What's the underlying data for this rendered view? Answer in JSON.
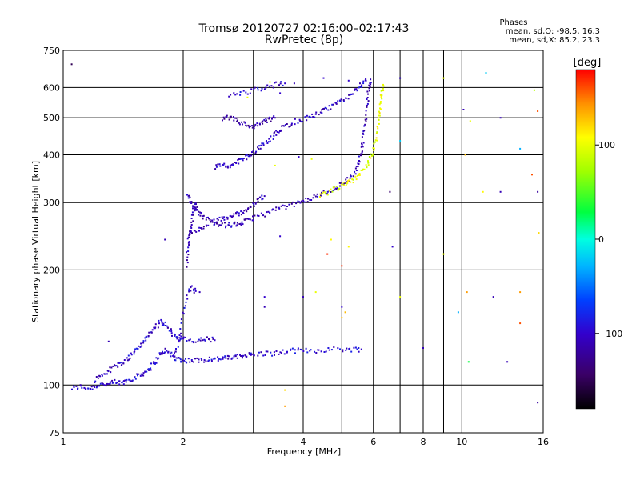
{
  "chart_data": {
    "type": "scatter",
    "title": "Tromsø 20120727 02:16:00–02:17:43",
    "subtitle": "RwPretec (8p)",
    "xlabel": "Frequency [MHz]",
    "ylabel": "Stationary phase Virtual Height [km]",
    "x_scale": "log",
    "y_scale": "log",
    "xlim": [
      1,
      16
    ],
    "ylim": [
      75,
      750
    ],
    "x_ticks": [
      1,
      2,
      4,
      6,
      8,
      10,
      16
    ],
    "y_ticks": [
      75,
      100,
      200,
      300,
      400,
      500,
      600,
      750
    ],
    "x_minor_gridlines": [
      3,
      5,
      7,
      9
    ],
    "grid": true,
    "phases_box": {
      "title": "Phases",
      "line_o": "mean, sd,O: -98.5, 16.3",
      "line_x": "mean, sd,X:  85.2, 23.3"
    },
    "colorbar": {
      "label": "[deg]",
      "range": [
        -180,
        180
      ],
      "ticks": [
        100,
        0,
        -100
      ],
      "tick_labels": [
        "100",
        "0",
        "−100"
      ]
    },
    "traces": [
      {
        "phase": -100,
        "points": [
          [
            1.05,
            98
          ],
          [
            1.1,
            99
          ],
          [
            1.15,
            98
          ],
          [
            1.2,
            99
          ],
          [
            1.25,
            101
          ],
          [
            1.3,
            100
          ],
          [
            1.35,
            102
          ],
          [
            1.4,
            101
          ],
          [
            1.45,
            103
          ],
          [
            1.5,
            104
          ],
          [
            1.55,
            106
          ],
          [
            1.6,
            108
          ],
          [
            1.65,
            111
          ],
          [
            1.7,
            115
          ],
          [
            1.75,
            120
          ],
          [
            1.8,
            123
          ],
          [
            1.85,
            121
          ],
          [
            1.9,
            118
          ],
          [
            1.95,
            117
          ],
          [
            2.0,
            116
          ],
          [
            2.1,
            116
          ],
          [
            2.2,
            116
          ],
          [
            2.3,
            117
          ],
          [
            2.4,
            117
          ],
          [
            2.5,
            117
          ],
          [
            2.6,
            118
          ],
          [
            2.7,
            118
          ],
          [
            2.8,
            119
          ],
          [
            2.9,
            120
          ],
          [
            3.0,
            120
          ],
          [
            3.2,
            121
          ],
          [
            3.4,
            121
          ],
          [
            3.6,
            122
          ],
          [
            3.8,
            123
          ],
          [
            4.0,
            123
          ],
          [
            4.3,
            123
          ],
          [
            4.6,
            124
          ],
          [
            5.0,
            124
          ],
          [
            5.3,
            124
          ],
          [
            5.6,
            124
          ]
        ]
      },
      {
        "phase": -100,
        "points": [
          [
            1.2,
            103
          ],
          [
            1.25,
            106
          ],
          [
            1.3,
            109
          ],
          [
            1.35,
            112
          ],
          [
            1.4,
            114
          ],
          [
            1.45,
            117
          ],
          [
            1.5,
            121
          ],
          [
            1.55,
            126
          ],
          [
            1.6,
            131
          ],
          [
            1.65,
            136
          ],
          [
            1.7,
            141
          ],
          [
            1.75,
            146
          ],
          [
            1.8,
            144
          ],
          [
            1.85,
            139
          ],
          [
            1.9,
            135
          ],
          [
            1.95,
            133
          ],
          [
            2.0,
            132
          ],
          [
            2.1,
            130
          ],
          [
            2.2,
            131
          ],
          [
            2.3,
            132
          ],
          [
            2.4,
            131
          ]
        ]
      },
      {
        "phase": -100,
        "points": [
          [
            1.9,
            120
          ],
          [
            1.95,
            130
          ],
          [
            2.0,
            152
          ],
          [
            2.05,
            172
          ],
          [
            2.1,
            180
          ],
          [
            2.15,
            176
          ]
        ]
      },
      {
        "phase": -110,
        "points": [
          [
            2.05,
            318
          ],
          [
            2.08,
            305
          ],
          [
            2.12,
            295
          ],
          [
            2.16,
            288
          ],
          [
            2.2,
            280
          ],
          [
            2.3,
            272
          ],
          [
            2.4,
            266
          ],
          [
            2.5,
            262
          ],
          [
            2.6,
            262
          ],
          [
            2.7,
            263
          ],
          [
            2.8,
            265
          ],
          [
            2.9,
            269
          ],
          [
            3.0,
            274
          ],
          [
            3.2,
            280
          ],
          [
            3.4,
            287
          ],
          [
            3.6,
            292
          ],
          [
            3.8,
            297
          ],
          [
            4.0,
            302
          ],
          [
            4.2,
            308
          ],
          [
            4.4,
            314
          ],
          [
            4.6,
            320
          ],
          [
            4.8,
            327
          ],
          [
            5.0,
            335
          ],
          [
            5.2,
            346
          ],
          [
            5.4,
            362
          ],
          [
            5.5,
            380
          ],
          [
            5.6,
            405
          ],
          [
            5.65,
            435
          ],
          [
            5.7,
            470
          ],
          [
            5.75,
            510
          ],
          [
            5.8,
            560
          ],
          [
            5.85,
            600
          ],
          [
            5.9,
            630
          ]
        ]
      },
      {
        "phase": -110,
        "points": [
          [
            2.05,
            245
          ],
          [
            2.1,
            250
          ],
          [
            2.2,
            256
          ],
          [
            2.3,
            262
          ],
          [
            2.4,
            268
          ],
          [
            2.5,
            272
          ],
          [
            2.6,
            275
          ],
          [
            2.7,
            279
          ],
          [
            2.8,
            283
          ],
          [
            2.9,
            289
          ],
          [
            3.0,
            296
          ],
          [
            3.1,
            305
          ],
          [
            3.2,
            312
          ]
        ]
      },
      {
        "phase": -110,
        "points": [
          [
            2.05,
            205
          ],
          [
            2.05,
            225
          ],
          [
            2.07,
            245
          ],
          [
            2.1,
            265
          ],
          [
            2.12,
            285
          ],
          [
            2.15,
            300
          ]
        ]
      },
      {
        "phase": -105,
        "points": [
          [
            2.4,
            372
          ],
          [
            2.5,
            373
          ],
          [
            2.6,
            375
          ],
          [
            2.7,
            380
          ],
          [
            2.8,
            388
          ],
          [
            2.9,
            395
          ],
          [
            3.0,
            405
          ],
          [
            3.1,
            416
          ],
          [
            3.2,
            428
          ],
          [
            3.3,
            440
          ],
          [
            3.4,
            452
          ],
          [
            3.5,
            465
          ],
          [
            3.6,
            475
          ],
          [
            3.8,
            488
          ],
          [
            4.0,
            495
          ],
          [
            4.2,
            505
          ],
          [
            4.4,
            515
          ],
          [
            4.6,
            525
          ],
          [
            4.8,
            540
          ],
          [
            5.0,
            555
          ],
          [
            5.2,
            570
          ],
          [
            5.4,
            590
          ],
          [
            5.6,
            610
          ],
          [
            5.75,
            625
          ]
        ]
      },
      {
        "phase": -115,
        "points": [
          [
            2.5,
            495
          ],
          [
            2.6,
            500
          ],
          [
            2.7,
            495
          ],
          [
            2.8,
            485
          ],
          [
            2.9,
            475
          ],
          [
            3.0,
            470
          ],
          [
            3.1,
            480
          ],
          [
            3.2,
            490
          ],
          [
            3.3,
            495
          ],
          [
            3.4,
            500
          ]
        ]
      },
      {
        "phase": -100,
        "points": [
          [
            2.6,
            570
          ],
          [
            2.8,
            580
          ],
          [
            3.0,
            590
          ],
          [
            3.2,
            600
          ],
          [
            3.4,
            610
          ],
          [
            3.6,
            615
          ]
        ]
      },
      {
        "phase": 100,
        "points": [
          [
            4.4,
            312
          ],
          [
            4.6,
            318
          ],
          [
            4.8,
            325
          ],
          [
            5.0,
            332
          ],
          [
            5.2,
            338
          ],
          [
            5.4,
            346
          ],
          [
            5.6,
            360
          ],
          [
            5.8,
            380
          ],
          [
            5.95,
            400
          ],
          [
            6.05,
            425
          ],
          [
            6.15,
            460
          ],
          [
            6.2,
            500
          ],
          [
            6.25,
            540
          ],
          [
            6.3,
            580
          ],
          [
            6.35,
            610
          ]
        ]
      }
    ],
    "scatter_points": [
      {
        "x": 1.05,
        "y": 690,
        "phase": -150
      },
      {
        "x": 3.3,
        "y": 620,
        "phase": 100
      },
      {
        "x": 3.8,
        "y": 615,
        "phase": -110
      },
      {
        "x": 4.5,
        "y": 635,
        "phase": -100
      },
      {
        "x": 5.2,
        "y": 625,
        "phase": -100
      },
      {
        "x": 7.0,
        "y": 635,
        "phase": -100
      },
      {
        "x": 9.0,
        "y": 635,
        "phase": 100
      },
      {
        "x": 11.5,
        "y": 655,
        "phase": -20
      },
      {
        "x": 15.2,
        "y": 590,
        "phase": 80
      },
      {
        "x": 15.5,
        "y": 520,
        "phase": 160
      },
      {
        "x": 10.1,
        "y": 525,
        "phase": -110
      },
      {
        "x": 10.5,
        "y": 490,
        "phase": 100
      },
      {
        "x": 10.2,
        "y": 400,
        "phase": 130
      },
      {
        "x": 12.5,
        "y": 500,
        "phase": -110
      },
      {
        "x": 14.0,
        "y": 415,
        "phase": -30
      },
      {
        "x": 7.0,
        "y": 435,
        "phase": -20
      },
      {
        "x": 15.0,
        "y": 355,
        "phase": 160
      },
      {
        "x": 11.3,
        "y": 320,
        "phase": 110
      },
      {
        "x": 12.5,
        "y": 320,
        "phase": -110
      },
      {
        "x": 15.5,
        "y": 320,
        "phase": -120
      },
      {
        "x": 15.6,
        "y": 250,
        "phase": 120
      },
      {
        "x": 9.0,
        "y": 220,
        "phase": 100
      },
      {
        "x": 6.7,
        "y": 230,
        "phase": -100
      },
      {
        "x": 5.2,
        "y": 230,
        "phase": 110
      },
      {
        "x": 4.7,
        "y": 240,
        "phase": 110
      },
      {
        "x": 4.6,
        "y": 220,
        "phase": 170
      },
      {
        "x": 5.0,
        "y": 205,
        "phase": 170
      },
      {
        "x": 6.6,
        "y": 320,
        "phase": -140
      },
      {
        "x": 10.3,
        "y": 175,
        "phase": 140
      },
      {
        "x": 12.0,
        "y": 170,
        "phase": -110
      },
      {
        "x": 14.0,
        "y": 175,
        "phase": 140
      },
      {
        "x": 14.0,
        "y": 145,
        "phase": 160
      },
      {
        "x": 9.8,
        "y": 155,
        "phase": -30
      },
      {
        "x": 7.0,
        "y": 170,
        "phase": 100
      },
      {
        "x": 5.0,
        "y": 150,
        "phase": 130
      },
      {
        "x": 5.1,
        "y": 155,
        "phase": 130
      },
      {
        "x": 8.0,
        "y": 125,
        "phase": -110
      },
      {
        "x": 10.4,
        "y": 115,
        "phase": 30
      },
      {
        "x": 13.0,
        "y": 115,
        "phase": -110
      },
      {
        "x": 15.5,
        "y": 90,
        "phase": -120
      },
      {
        "x": 3.6,
        "y": 88,
        "phase": 140
      },
      {
        "x": 3.6,
        "y": 97,
        "phase": 120
      },
      {
        "x": 3.2,
        "y": 160,
        "phase": -110
      },
      {
        "x": 3.2,
        "y": 170,
        "phase": -100
      },
      {
        "x": 2.2,
        "y": 175,
        "phase": -110
      },
      {
        "x": 4.0,
        "y": 170,
        "phase": -110
      },
      {
        "x": 4.3,
        "y": 175,
        "phase": 100
      },
      {
        "x": 5.0,
        "y": 160,
        "phase": -100
      },
      {
        "x": 1.3,
        "y": 130,
        "phase": -110
      },
      {
        "x": 1.8,
        "y": 240,
        "phase": -110
      },
      {
        "x": 3.5,
        "y": 245,
        "phase": -100
      },
      {
        "x": 4.2,
        "y": 390,
        "phase": 100
      },
      {
        "x": 3.9,
        "y": 395,
        "phase": -100
      },
      {
        "x": 3.4,
        "y": 375,
        "phase": 100
      },
      {
        "x": 2.9,
        "y": 565,
        "phase": 100
      },
      {
        "x": 3.5,
        "y": 580,
        "phase": -100
      }
    ]
  }
}
